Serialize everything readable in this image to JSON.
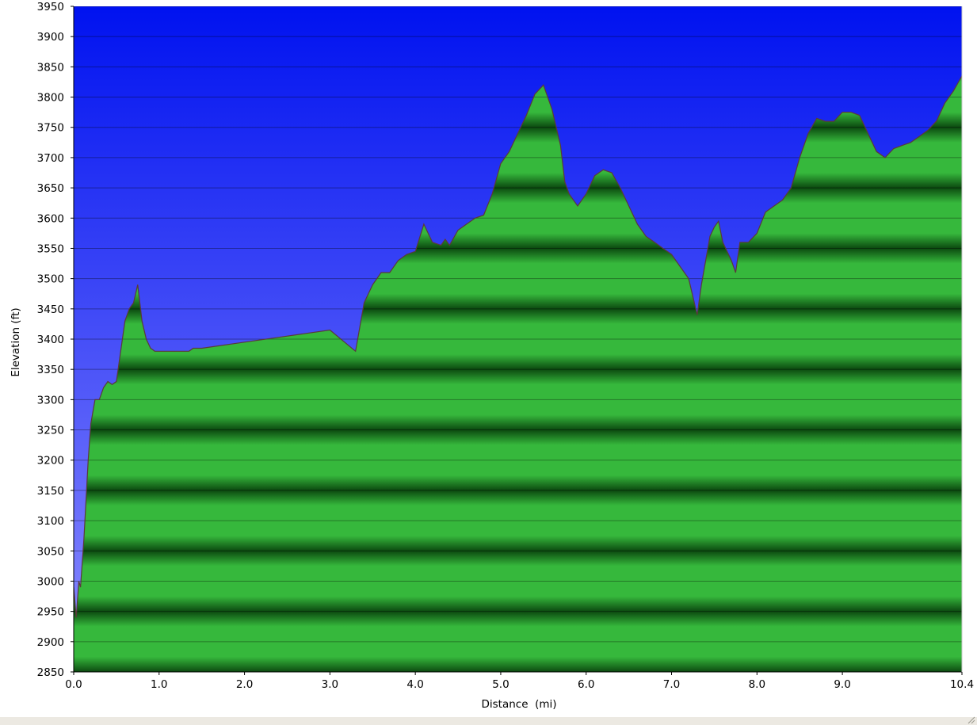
{
  "chart_data": {
    "type": "area",
    "xlabel": "Distance  (mi)",
    "ylabel": "Elevation (ft)",
    "xlim": [
      0,
      10.4
    ],
    "ylim": [
      2850,
      3950
    ],
    "x_ticks": [
      {
        "value": 0,
        "label": "0.0"
      },
      {
        "value": 1,
        "label": "1.0"
      },
      {
        "value": 2,
        "label": "2.0"
      },
      {
        "value": 3,
        "label": "3.0"
      },
      {
        "value": 4,
        "label": "4.0"
      },
      {
        "value": 5,
        "label": "5.0"
      },
      {
        "value": 6,
        "label": "6.0"
      },
      {
        "value": 7,
        "label": "7.0"
      },
      {
        "value": 8,
        "label": "8.0"
      },
      {
        "value": 9,
        "label": "9.0"
      },
      {
        "value": 10.4,
        "label": "10.4"
      }
    ],
    "y_ticks": [
      2850,
      2900,
      2950,
      3000,
      3050,
      3100,
      3150,
      3200,
      3250,
      3300,
      3350,
      3400,
      3450,
      3500,
      3550,
      3600,
      3650,
      3700,
      3750,
      3800,
      3850,
      3900,
      3950
    ],
    "grid": true,
    "colors": {
      "sky_top": "#0012f0",
      "sky_bottom": "#8c8cff",
      "fill_light": "#36b83c",
      "fill_dark": "#0c4a10",
      "outline": "#5a3a3a",
      "gridline": "#000000"
    },
    "series": [
      {
        "x": [
          0.0,
          0.03,
          0.06,
          0.08,
          0.12,
          0.17,
          0.2,
          0.25,
          0.3,
          0.35,
          0.4,
          0.45,
          0.5,
          0.55,
          0.6,
          0.65,
          0.7,
          0.75,
          0.8,
          0.85,
          0.9,
          0.95,
          1.0,
          1.05,
          1.1,
          1.15,
          1.2,
          1.25,
          1.3,
          1.35,
          1.4,
          1.5,
          2.0,
          2.5,
          3.0,
          3.3,
          3.35,
          3.4,
          3.5,
          3.6,
          3.7,
          3.8,
          3.9,
          4.0,
          4.1,
          4.2,
          4.3,
          4.35,
          4.4,
          4.5,
          4.6,
          4.7,
          4.8,
          4.9,
          5.0,
          5.1,
          5.2,
          5.3,
          5.4,
          5.5,
          5.6,
          5.7,
          5.75,
          5.8,
          5.9,
          6.0,
          6.1,
          6.2,
          6.3,
          6.4,
          6.5,
          6.6,
          6.7,
          6.8,
          6.9,
          7.0,
          7.1,
          7.2,
          7.3,
          7.35,
          7.4,
          7.45,
          7.5,
          7.55,
          7.6,
          7.7,
          7.75,
          7.8,
          7.9,
          8.0,
          8.1,
          8.2,
          8.3,
          8.4,
          8.5,
          8.6,
          8.7,
          8.8,
          8.9,
          9.0,
          9.1,
          9.2,
          9.3,
          9.4,
          9.5,
          9.6,
          9.7,
          9.8,
          9.9,
          10.0,
          10.1,
          10.2,
          10.3,
          10.4
        ],
        "y": [
          2990,
          2940,
          3000,
          2990,
          3070,
          3200,
          3260,
          3300,
          3300,
          3320,
          3330,
          3325,
          3330,
          3380,
          3430,
          3450,
          3460,
          3490,
          3430,
          3400,
          3385,
          3380,
          3380,
          3380,
          3380,
          3380,
          3380,
          3380,
          3380,
          3380,
          3385,
          3385,
          3395,
          3405,
          3415,
          3380,
          3420,
          3460,
          3490,
          3510,
          3510,
          3530,
          3540,
          3545,
          3590,
          3560,
          3555,
          3565,
          3555,
          3580,
          3590,
          3600,
          3605,
          3640,
          3690,
          3710,
          3740,
          3770,
          3805,
          3820,
          3780,
          3720,
          3660,
          3640,
          3620,
          3640,
          3670,
          3680,
          3675,
          3650,
          3620,
          3590,
          3570,
          3560,
          3550,
          3540,
          3520,
          3500,
          3440,
          3490,
          3530,
          3570,
          3585,
          3595,
          3560,
          3530,
          3510,
          3560,
          3560,
          3575,
          3610,
          3620,
          3630,
          3650,
          3700,
          3740,
          3765,
          3760,
          3760,
          3775,
          3775,
          3770,
          3740,
          3710,
          3700,
          3715,
          3720,
          3725,
          3735,
          3745,
          3760,
          3790,
          3810,
          3835
        ]
      }
    ]
  }
}
